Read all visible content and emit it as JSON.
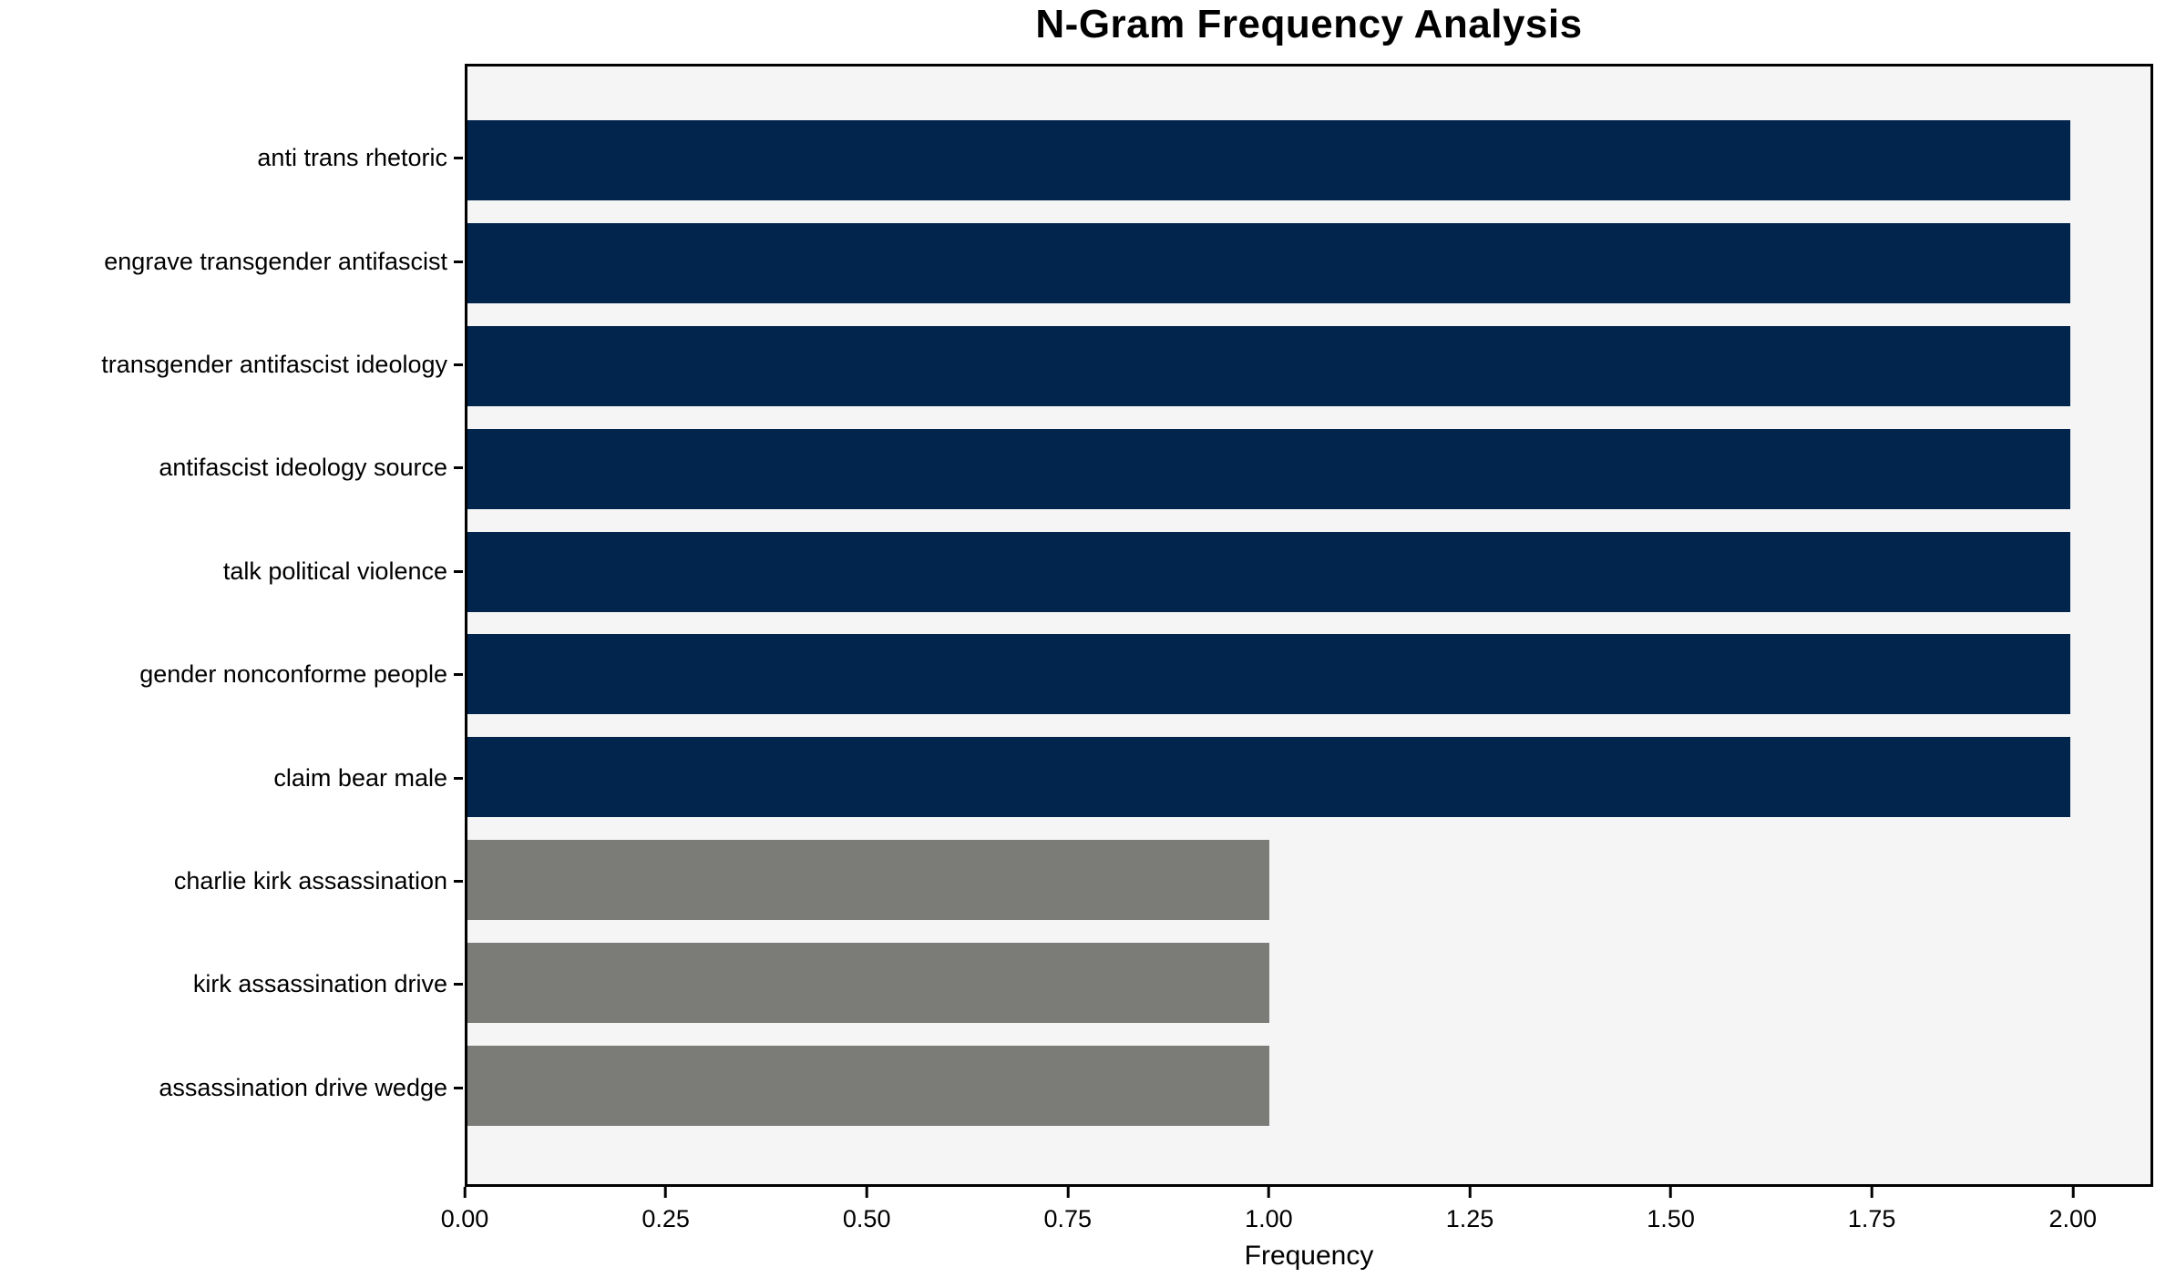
{
  "title": "N-Gram Frequency Analysis",
  "chart_data": {
    "type": "bar",
    "orientation": "horizontal",
    "title": "N-Gram Frequency Analysis",
    "xlabel": "Frequency",
    "ylabel": "",
    "xlim": [
      0,
      2.1
    ],
    "grid": false,
    "legend": "none",
    "plot_background": "#f5f5f5",
    "figure_background": "#ffffff",
    "colors": {
      "high_frequency_bar": "#02254d",
      "low_frequency_bar": "#7b7b78"
    },
    "categories": [
      "anti trans rhetoric",
      "engrave transgender antifascist",
      "transgender antifascist ideology",
      "antifascist ideology source",
      "talk political violence",
      "gender nonconforme people",
      "claim bear male",
      "charlie kirk assassination",
      "kirk assassination drive",
      "assassination drive wedge"
    ],
    "values": [
      2,
      2,
      2,
      2,
      2,
      2,
      2,
      1,
      1,
      1
    ],
    "bar_colors": [
      "#02254d",
      "#02254d",
      "#02254d",
      "#02254d",
      "#02254d",
      "#02254d",
      "#02254d",
      "#7b7b78",
      "#7b7b78",
      "#7b7b78"
    ],
    "x_ticks": [
      {
        "value": 0.0,
        "label": "0.00"
      },
      {
        "value": 0.25,
        "label": "0.25"
      },
      {
        "value": 0.5,
        "label": "0.50"
      },
      {
        "value": 0.75,
        "label": "0.75"
      },
      {
        "value": 1.0,
        "label": "1.00"
      },
      {
        "value": 1.25,
        "label": "1.25"
      },
      {
        "value": 1.5,
        "label": "1.50"
      },
      {
        "value": 1.75,
        "label": "1.75"
      },
      {
        "value": 2.0,
        "label": "2.00"
      }
    ]
  }
}
